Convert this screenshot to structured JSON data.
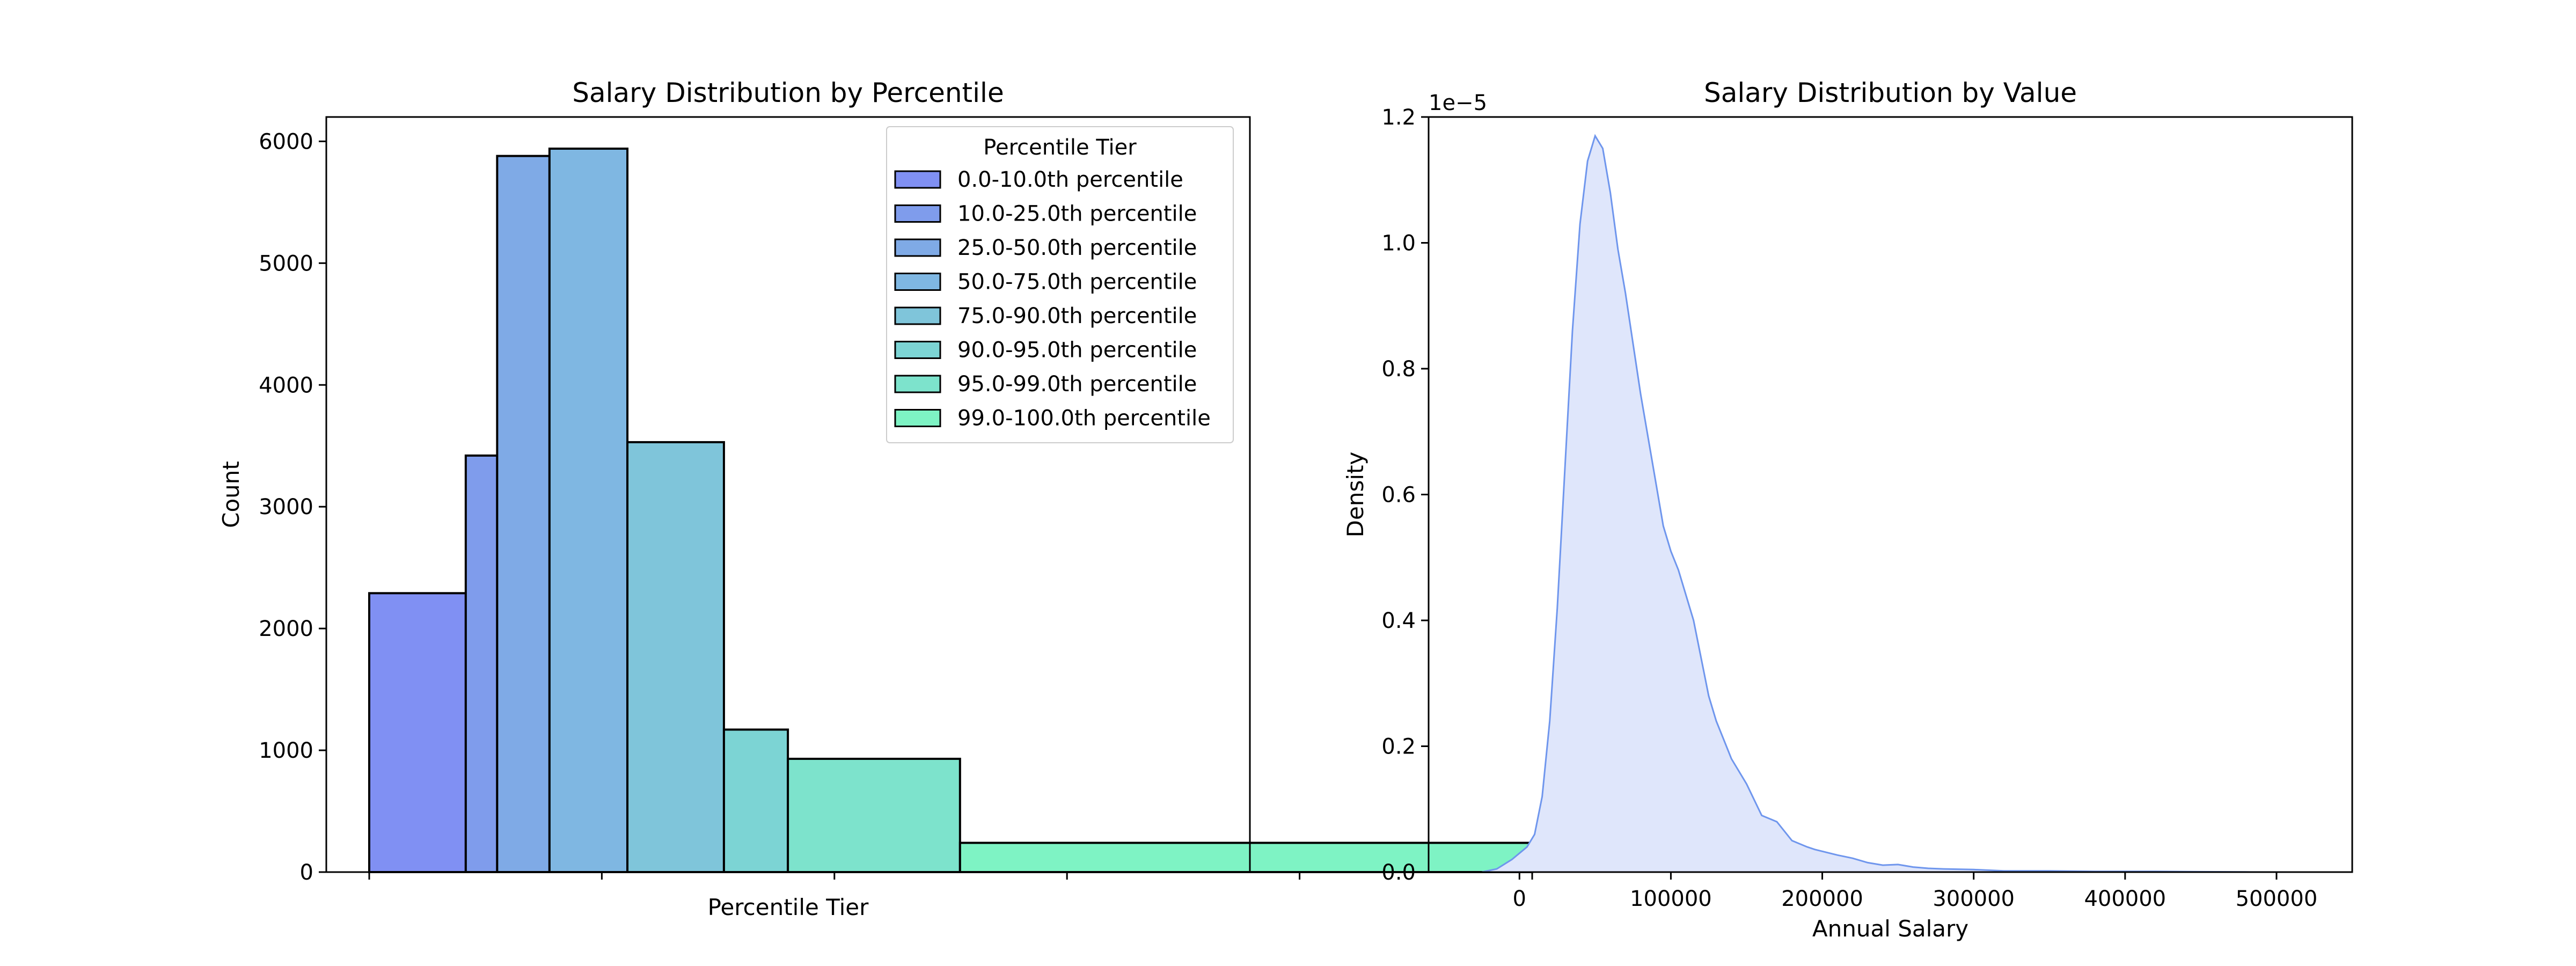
{
  "chart_data": [
    {
      "type": "bar",
      "title": "Salary Distribution by Percentile",
      "xlabel": "Percentile Tier",
      "ylabel": "Count",
      "ylim": [
        0,
        6200
      ],
      "yticks": [
        0,
        1000,
        2000,
        3000,
        4000,
        5000,
        6000
      ],
      "legend": {
        "title": "Percentile Tier",
        "position": "top-right",
        "entries": [
          "0.0-10.0th percentile",
          "10.0-25.0th percentile",
          "25.0-50.0th percentile",
          "50.0-75.0th percentile",
          "75.0-90.0th percentile",
          "90.0-95.0th percentile",
          "95.0-99.0th percentile",
          "99.0-100.0th percentile"
        ]
      },
      "bins": [
        {
          "x0": 0.0,
          "x1": 0.083,
          "count": 2290,
          "tier": 0
        },
        {
          "x0": 0.083,
          "x1": 0.11,
          "count": 3420,
          "tier": 1
        },
        {
          "x0": 0.11,
          "x1": 0.155,
          "count": 5880,
          "tier": 2
        },
        {
          "x0": 0.155,
          "x1": 0.222,
          "count": 5940,
          "tier": 3
        },
        {
          "x0": 0.222,
          "x1": 0.305,
          "count": 3530,
          "tier": 4
        },
        {
          "x0": 0.305,
          "x1": 0.36,
          "count": 1170,
          "tier": 5
        },
        {
          "x0": 0.36,
          "x1": 0.508,
          "count": 930,
          "tier": 6
        },
        {
          "x0": 0.508,
          "x1": 1.0,
          "count": 240,
          "tier": 7
        }
      ],
      "colors": [
        "#8090f3",
        "#7f9cec",
        "#7faae6",
        "#7fb7e2",
        "#7fc5da",
        "#7cd4d4",
        "#7de3cc",
        "#7ef3c4"
      ],
      "grid": false
    },
    {
      "type": "area",
      "title": "Salary Distribution by Value",
      "xlabel": "Annual Salary",
      "ylabel": "Density",
      "offset_label": "1e−5",
      "xlim": [
        -60000,
        550000
      ],
      "ylim": [
        0,
        1.2
      ],
      "xticks": [
        0,
        100000,
        200000,
        300000,
        400000,
        500000
      ],
      "yticks": [
        0.0,
        0.2,
        0.4,
        0.6,
        0.8,
        1.0,
        1.2
      ],
      "x": [
        -25000,
        -15000,
        -5000,
        0,
        5000,
        10000,
        15000,
        20000,
        25000,
        30000,
        35000,
        40000,
        45000,
        50000,
        55000,
        60000,
        65000,
        70000,
        75000,
        80000,
        85000,
        90000,
        95000,
        100000,
        105000,
        110000,
        115000,
        120000,
        125000,
        130000,
        135000,
        140000,
        145000,
        150000,
        160000,
        170000,
        180000,
        190000,
        195000,
        200000,
        210000,
        220000,
        230000,
        240000,
        250000,
        260000,
        270000,
        280000,
        300000,
        320000,
        350000,
        380000,
        400000,
        420000,
        450000,
        480000,
        510000
      ],
      "y": [
        0.0,
        0.005,
        0.02,
        0.03,
        0.04,
        0.06,
        0.12,
        0.24,
        0.42,
        0.64,
        0.86,
        1.03,
        1.13,
        1.17,
        1.15,
        1.08,
        0.99,
        0.92,
        0.84,
        0.76,
        0.69,
        0.62,
        0.55,
        0.51,
        0.48,
        0.44,
        0.4,
        0.34,
        0.28,
        0.24,
        0.21,
        0.18,
        0.16,
        0.14,
        0.09,
        0.08,
        0.05,
        0.04,
        0.036,
        0.033,
        0.027,
        0.022,
        0.015,
        0.011,
        0.012,
        0.008,
        0.006,
        0.005,
        0.004,
        0.002,
        0.002,
        0.001,
        0.001,
        0.001,
        0.0005,
        0.0002,
        0.0
      ],
      "line_color": "#6f96ed",
      "fill_color": "#dfe6fb",
      "grid": false
    }
  ]
}
